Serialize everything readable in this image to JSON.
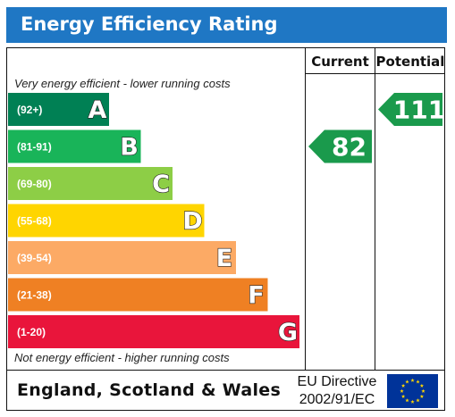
{
  "header": {
    "title": "Energy Efficiency Rating"
  },
  "columns": {
    "current": "Current",
    "potential": "Potential"
  },
  "notes": {
    "top": "Very energy efficient - lower running costs",
    "bottom": "Not energy efficient - higher running costs"
  },
  "footer": {
    "country": "England, Scotland & Wales",
    "directive_line1": "EU Directive",
    "directive_line2": "2002/91/EC"
  },
  "colors": {
    "title_bar": "#1f77c4",
    "arrow": "#1a9a4c",
    "flag": "#003399",
    "stars": "#ffd700"
  },
  "chart_data": {
    "type": "bar",
    "title": "Energy Efficiency Rating",
    "bands": [
      {
        "letter": "A",
        "range": "(92+)",
        "min": 92,
        "max": null,
        "color": "#008054"
      },
      {
        "letter": "B",
        "range": "(81-91)",
        "min": 81,
        "max": 91,
        "color": "#19b459"
      },
      {
        "letter": "C",
        "range": "(69-80)",
        "min": 69,
        "max": 80,
        "color": "#8dce46"
      },
      {
        "letter": "D",
        "range": "(55-68)",
        "min": 55,
        "max": 68,
        "color": "#ffd500"
      },
      {
        "letter": "E",
        "range": "(39-54)",
        "min": 39,
        "max": 54,
        "color": "#fcaa65"
      },
      {
        "letter": "F",
        "range": "(21-38)",
        "min": 21,
        "max": 38,
        "color": "#ef8023"
      },
      {
        "letter": "G",
        "range": "(1-20)",
        "min": 1,
        "max": 20,
        "color": "#e9153b"
      }
    ],
    "current": {
      "value": 82,
      "band": "B"
    },
    "potential": {
      "value": 111,
      "band": "A"
    }
  }
}
